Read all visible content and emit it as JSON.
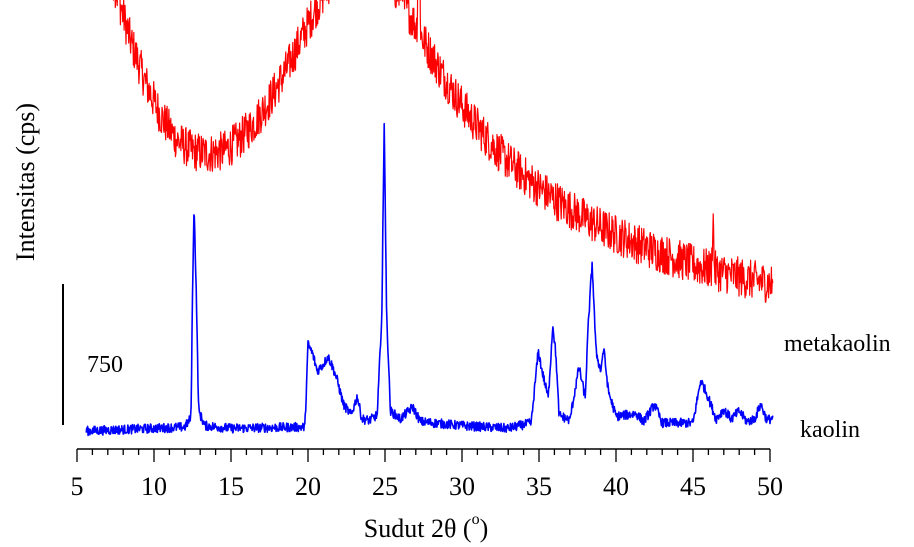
{
  "chart_data": {
    "type": "line",
    "title": "",
    "xlabel_main": "Sudut 2θ (",
    "xlabel_sup": "o",
    "xlabel_close": ")",
    "ylabel": "Intensitas (cps)",
    "xlim": [
      5,
      50
    ],
    "x_ticks": [
      "5",
      "10",
      "15",
      "20",
      "25",
      "30",
      "35",
      "40",
      "45",
      "50"
    ],
    "y_ticks_shown": false,
    "grid": false,
    "scale_bar": {
      "label": "750",
      "value": 750
    },
    "legend": "inline labels at right end of each trace",
    "series": [
      {
        "name": "metakaolin",
        "color": "#ff0000",
        "noise": 300,
        "points": [
          [
            5.6,
            4160
          ],
          [
            6.5,
            3750
          ],
          [
            7.5,
            3320
          ],
          [
            8.5,
            2920
          ],
          [
            9.5,
            2600
          ],
          [
            10.5,
            2350
          ],
          [
            11.5,
            2180
          ],
          [
            12.5,
            2100
          ],
          [
            13.5,
            2080
          ],
          [
            14.5,
            2100
          ],
          [
            15.5,
            2180
          ],
          [
            16.5,
            2310
          ],
          [
            17.5,
            2480
          ],
          [
            18.5,
            2690
          ],
          [
            19.5,
            2930
          ],
          [
            20.5,
            3170
          ],
          [
            21.5,
            3380
          ],
          [
            22.5,
            3500
          ],
          [
            23.5,
            3530
          ],
          [
            24.5,
            3470
          ],
          [
            25.5,
            3340
          ],
          [
            26.5,
            3150
          ],
          [
            27.5,
            2930
          ],
          [
            28.5,
            2720
          ],
          [
            29.5,
            2530
          ],
          [
            30.5,
            2360
          ],
          [
            31.5,
            2210
          ],
          [
            32.5,
            2080
          ],
          [
            33.5,
            1970
          ],
          [
            34.5,
            1870
          ],
          [
            35.5,
            1780
          ],
          [
            36.5,
            1700
          ],
          [
            37.5,
            1630
          ],
          [
            38.5,
            1560
          ],
          [
            39.5,
            1500
          ],
          [
            40.5,
            1450
          ],
          [
            41.5,
            1400
          ],
          [
            42.5,
            1350
          ],
          [
            43.5,
            1310
          ],
          [
            44.5,
            1270
          ],
          [
            45.5,
            1230
          ],
          [
            46.5,
            1200
          ],
          [
            47.5,
            1170
          ],
          [
            48.5,
            1140
          ],
          [
            49.5,
            1120
          ],
          [
            50.2,
            1100
          ]
        ],
        "peaks": [
          [
            25.05,
            900
          ],
          [
            26.1,
            300
          ],
          [
            27.2,
            2200
          ],
          [
            46.3,
            400
          ]
        ]
      },
      {
        "name": "kaolin",
        "color": "#0000ff",
        "noise": 70,
        "points": [
          [
            5.6,
            0
          ],
          [
            10,
            20
          ],
          [
            12.0,
            30
          ],
          [
            12.4,
            100
          ],
          [
            12.5,
            1000
          ],
          [
            12.6,
            1720
          ],
          [
            12.75,
            1000
          ],
          [
            12.9,
            150
          ],
          [
            13.3,
            40
          ],
          [
            15,
            20
          ],
          [
            19.8,
            30
          ],
          [
            20.0,
            650
          ],
          [
            20.3,
            580
          ],
          [
            20.6,
            450
          ],
          [
            21.0,
            500
          ],
          [
            21.3,
            560
          ],
          [
            21.6,
            480
          ],
          [
            21.9,
            380
          ],
          [
            22.3,
            200
          ],
          [
            22.8,
            120
          ],
          [
            23.2,
            260
          ],
          [
            23.5,
            90
          ],
          [
            24.0,
            80
          ],
          [
            24.5,
            120
          ],
          [
            24.8,
            900
          ],
          [
            24.95,
            2330
          ],
          [
            25.1,
            900
          ],
          [
            25.35,
            150
          ],
          [
            26.0,
            90
          ],
          [
            26.8,
            180
          ],
          [
            27.3,
            70
          ],
          [
            30,
            40
          ],
          [
            33,
            20
          ],
          [
            34.5,
            60
          ],
          [
            34.95,
            600
          ],
          [
            35.2,
            450
          ],
          [
            35.6,
            250
          ],
          [
            35.9,
            800
          ],
          [
            36.1,
            560
          ],
          [
            36.3,
            120
          ],
          [
            37,
            80
          ],
          [
            37.6,
            480
          ],
          [
            38.0,
            250
          ],
          [
            38.2,
            800
          ],
          [
            38.45,
            1260
          ],
          [
            38.7,
            600
          ],
          [
            39.0,
            450
          ],
          [
            39.2,
            620
          ],
          [
            39.5,
            300
          ],
          [
            40,
            110
          ],
          [
            41.3,
            130
          ],
          [
            41.8,
            70
          ],
          [
            42.5,
            200
          ],
          [
            43,
            60
          ],
          [
            45,
            60
          ],
          [
            45.5,
            380
          ],
          [
            45.9,
            280
          ],
          [
            46.5,
            90
          ],
          [
            47.0,
            160
          ],
          [
            47.5,
            90
          ],
          [
            48.0,
            150
          ],
          [
            48.5,
            70
          ],
          [
            49.0,
            90
          ],
          [
            49.4,
            200
          ],
          [
            49.8,
            80
          ],
          [
            50.2,
            100
          ]
        ]
      }
    ]
  }
}
